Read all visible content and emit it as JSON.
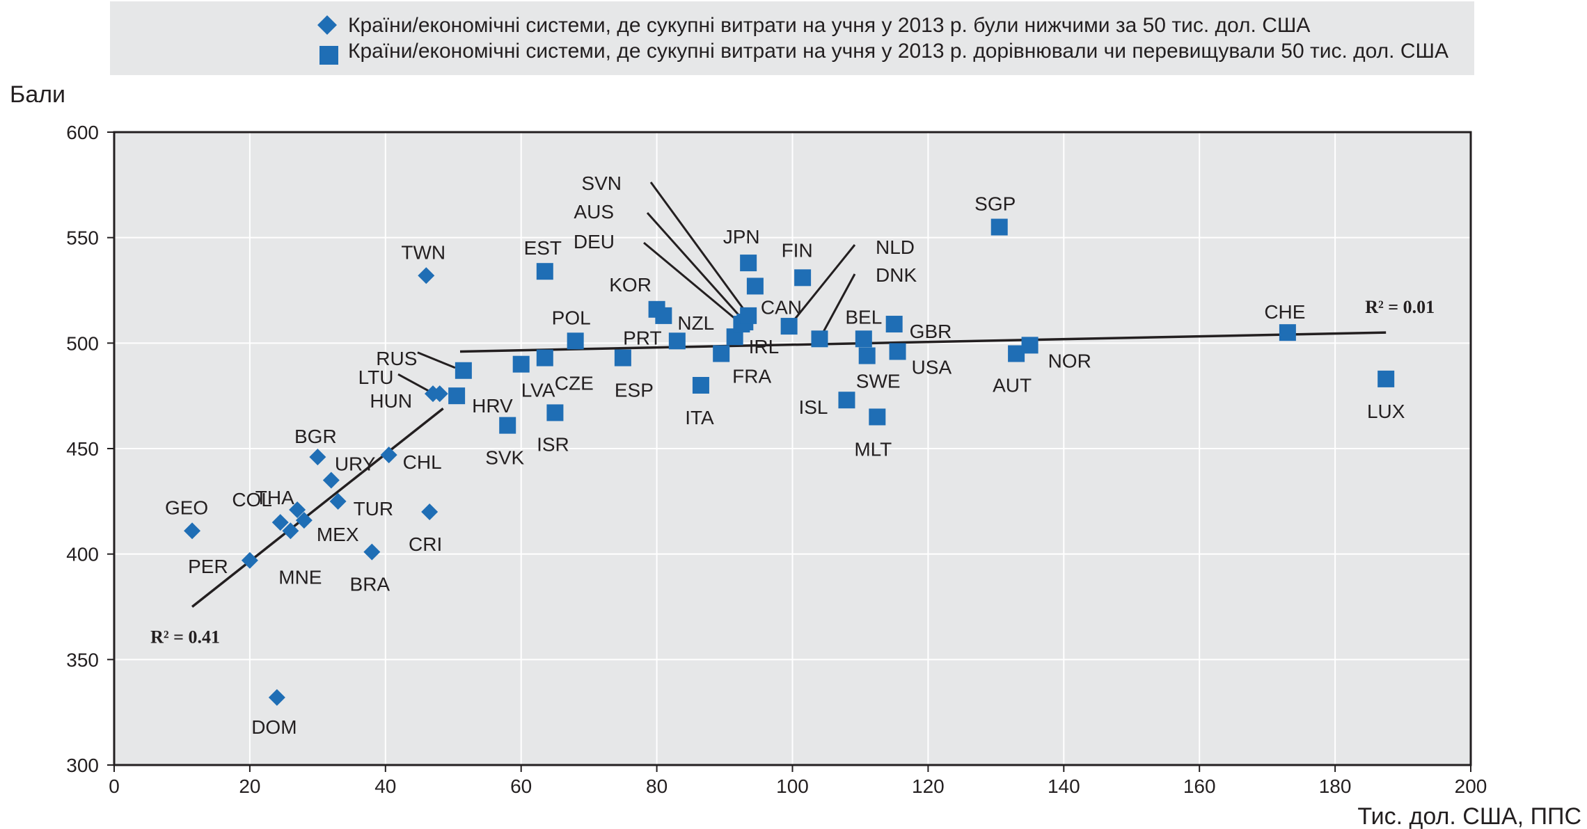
{
  "chart_data": {
    "type": "scatter",
    "ylabel": "Бали",
    "xlabel": "Тис. дол. США, ППС",
    "xlim": [
      0,
      200
    ],
    "ylim": [
      300,
      600
    ],
    "x_ticks": [
      "0",
      "20",
      "40",
      "60",
      "80",
      "100",
      "120",
      "140",
      "160",
      "180",
      "200"
    ],
    "y_ticks": [
      "300",
      "350",
      "400",
      "450",
      "500",
      "550",
      "600"
    ],
    "grid": true,
    "legend_position": "top",
    "series": [
      {
        "name": "Країни/економічні системи, де сукупні витрати на учня у 2013 р. були нижчими за 50 тис. дол. США",
        "marker": "diamond",
        "color": "#1f6eb5",
        "points": [
          {
            "label": "GEO",
            "x": 11.5,
            "y": 411
          },
          {
            "label": "PER",
            "x": 20,
            "y": 397
          },
          {
            "label": "DOM",
            "x": 24,
            "y": 332
          },
          {
            "label": "THA",
            "x": 24.5,
            "y": 415
          },
          {
            "label": "MNE",
            "x": 26,
            "y": 411
          },
          {
            "label": "COL",
            "x": 27,
            "y": 421
          },
          {
            "label": "MEX",
            "x": 28,
            "y": 416
          },
          {
            "label": "BGR",
            "x": 30,
            "y": 446
          },
          {
            "label": "URY",
            "x": 32,
            "y": 435
          },
          {
            "label": "TUR",
            "x": 33,
            "y": 425
          },
          {
            "label": "BRA",
            "x": 38,
            "y": 401
          },
          {
            "label": "CHL",
            "x": 40.5,
            "y": 447
          },
          {
            "label": "TWN",
            "x": 46,
            "y": 532
          },
          {
            "label": "CRI",
            "x": 46.5,
            "y": 420
          },
          {
            "label": "LTU",
            "x": 47,
            "y": 476
          },
          {
            "label": "HUN",
            "x": 48,
            "y": 476
          }
        ]
      },
      {
        "name": "Країни/економічні системи, де сукупні витрати на учня у 2013 р. дорівнювали чи перевищували 50 тис. дол. США",
        "marker": "square",
        "color": "#1f6eb5",
        "points": [
          {
            "label": "HRV",
            "x": 50.5,
            "y": 475
          },
          {
            "label": "RUS",
            "x": 51.5,
            "y": 487
          },
          {
            "label": "SVK",
            "x": 58,
            "y": 461
          },
          {
            "label": "LVA",
            "x": 60,
            "y": 490
          },
          {
            "label": "EST",
            "x": 63.5,
            "y": 534
          },
          {
            "label": "CZE",
            "x": 63.5,
            "y": 493
          },
          {
            "label": "ISR",
            "x": 65,
            "y": 467
          },
          {
            "label": "POL",
            "x": 68,
            "y": 501
          },
          {
            "label": "ESP",
            "x": 75,
            "y": 493
          },
          {
            "label": "KOR",
            "x": 80,
            "y": 516
          },
          {
            "label": "NZL",
            "x": 81,
            "y": 513
          },
          {
            "label": "PRT",
            "x": 83,
            "y": 501
          },
          {
            "label": "ITA",
            "x": 86.5,
            "y": 480
          },
          {
            "label": "FRA",
            "x": 89.5,
            "y": 495
          },
          {
            "label": "IRL",
            "x": 91.5,
            "y": 503
          },
          {
            "label": "DEU",
            "x": 92.5,
            "y": 509
          },
          {
            "label": "AUS",
            "x": 93,
            "y": 510
          },
          {
            "label": "SVN",
            "x": 93.5,
            "y": 513
          },
          {
            "label": "JPN",
            "x": 93.5,
            "y": 538
          },
          {
            "label": "CAN",
            "x": 94.5,
            "y": 527
          },
          {
            "label": "NLD",
            "x": 99.5,
            "y": 508
          },
          {
            "label": "FIN",
            "x": 101.5,
            "y": 531
          },
          {
            "label": "DNK",
            "x": 104,
            "y": 502
          },
          {
            "label": "ISL",
            "x": 108,
            "y": 473
          },
          {
            "label": "BEL",
            "x": 110.5,
            "y": 502
          },
          {
            "label": "SWE",
            "x": 111,
            "y": 494
          },
          {
            "label": "MLT",
            "x": 112.5,
            "y": 465
          },
          {
            "label": "GBR",
            "x": 115,
            "y": 509
          },
          {
            "label": "USA",
            "x": 115.5,
            "y": 496
          },
          {
            "label": "SGP",
            "x": 130.5,
            "y": 555
          },
          {
            "label": "AUT",
            "x": 133,
            "y": 495
          },
          {
            "label": "NOR",
            "x": 135,
            "y": 499
          },
          {
            "label": "CHE",
            "x": 173,
            "y": 505
          },
          {
            "label": "LUX",
            "x": 187.5,
            "y": 483
          }
        ]
      }
    ],
    "trendlines": [
      {
        "label": "R² = 0.41",
        "from": [
          11.5,
          375
        ],
        "to": [
          48.5,
          469
        ]
      },
      {
        "label": "R² = 0.01",
        "from": [
          51,
          496
        ],
        "to": [
          187.5,
          505
        ]
      }
    ]
  }
}
